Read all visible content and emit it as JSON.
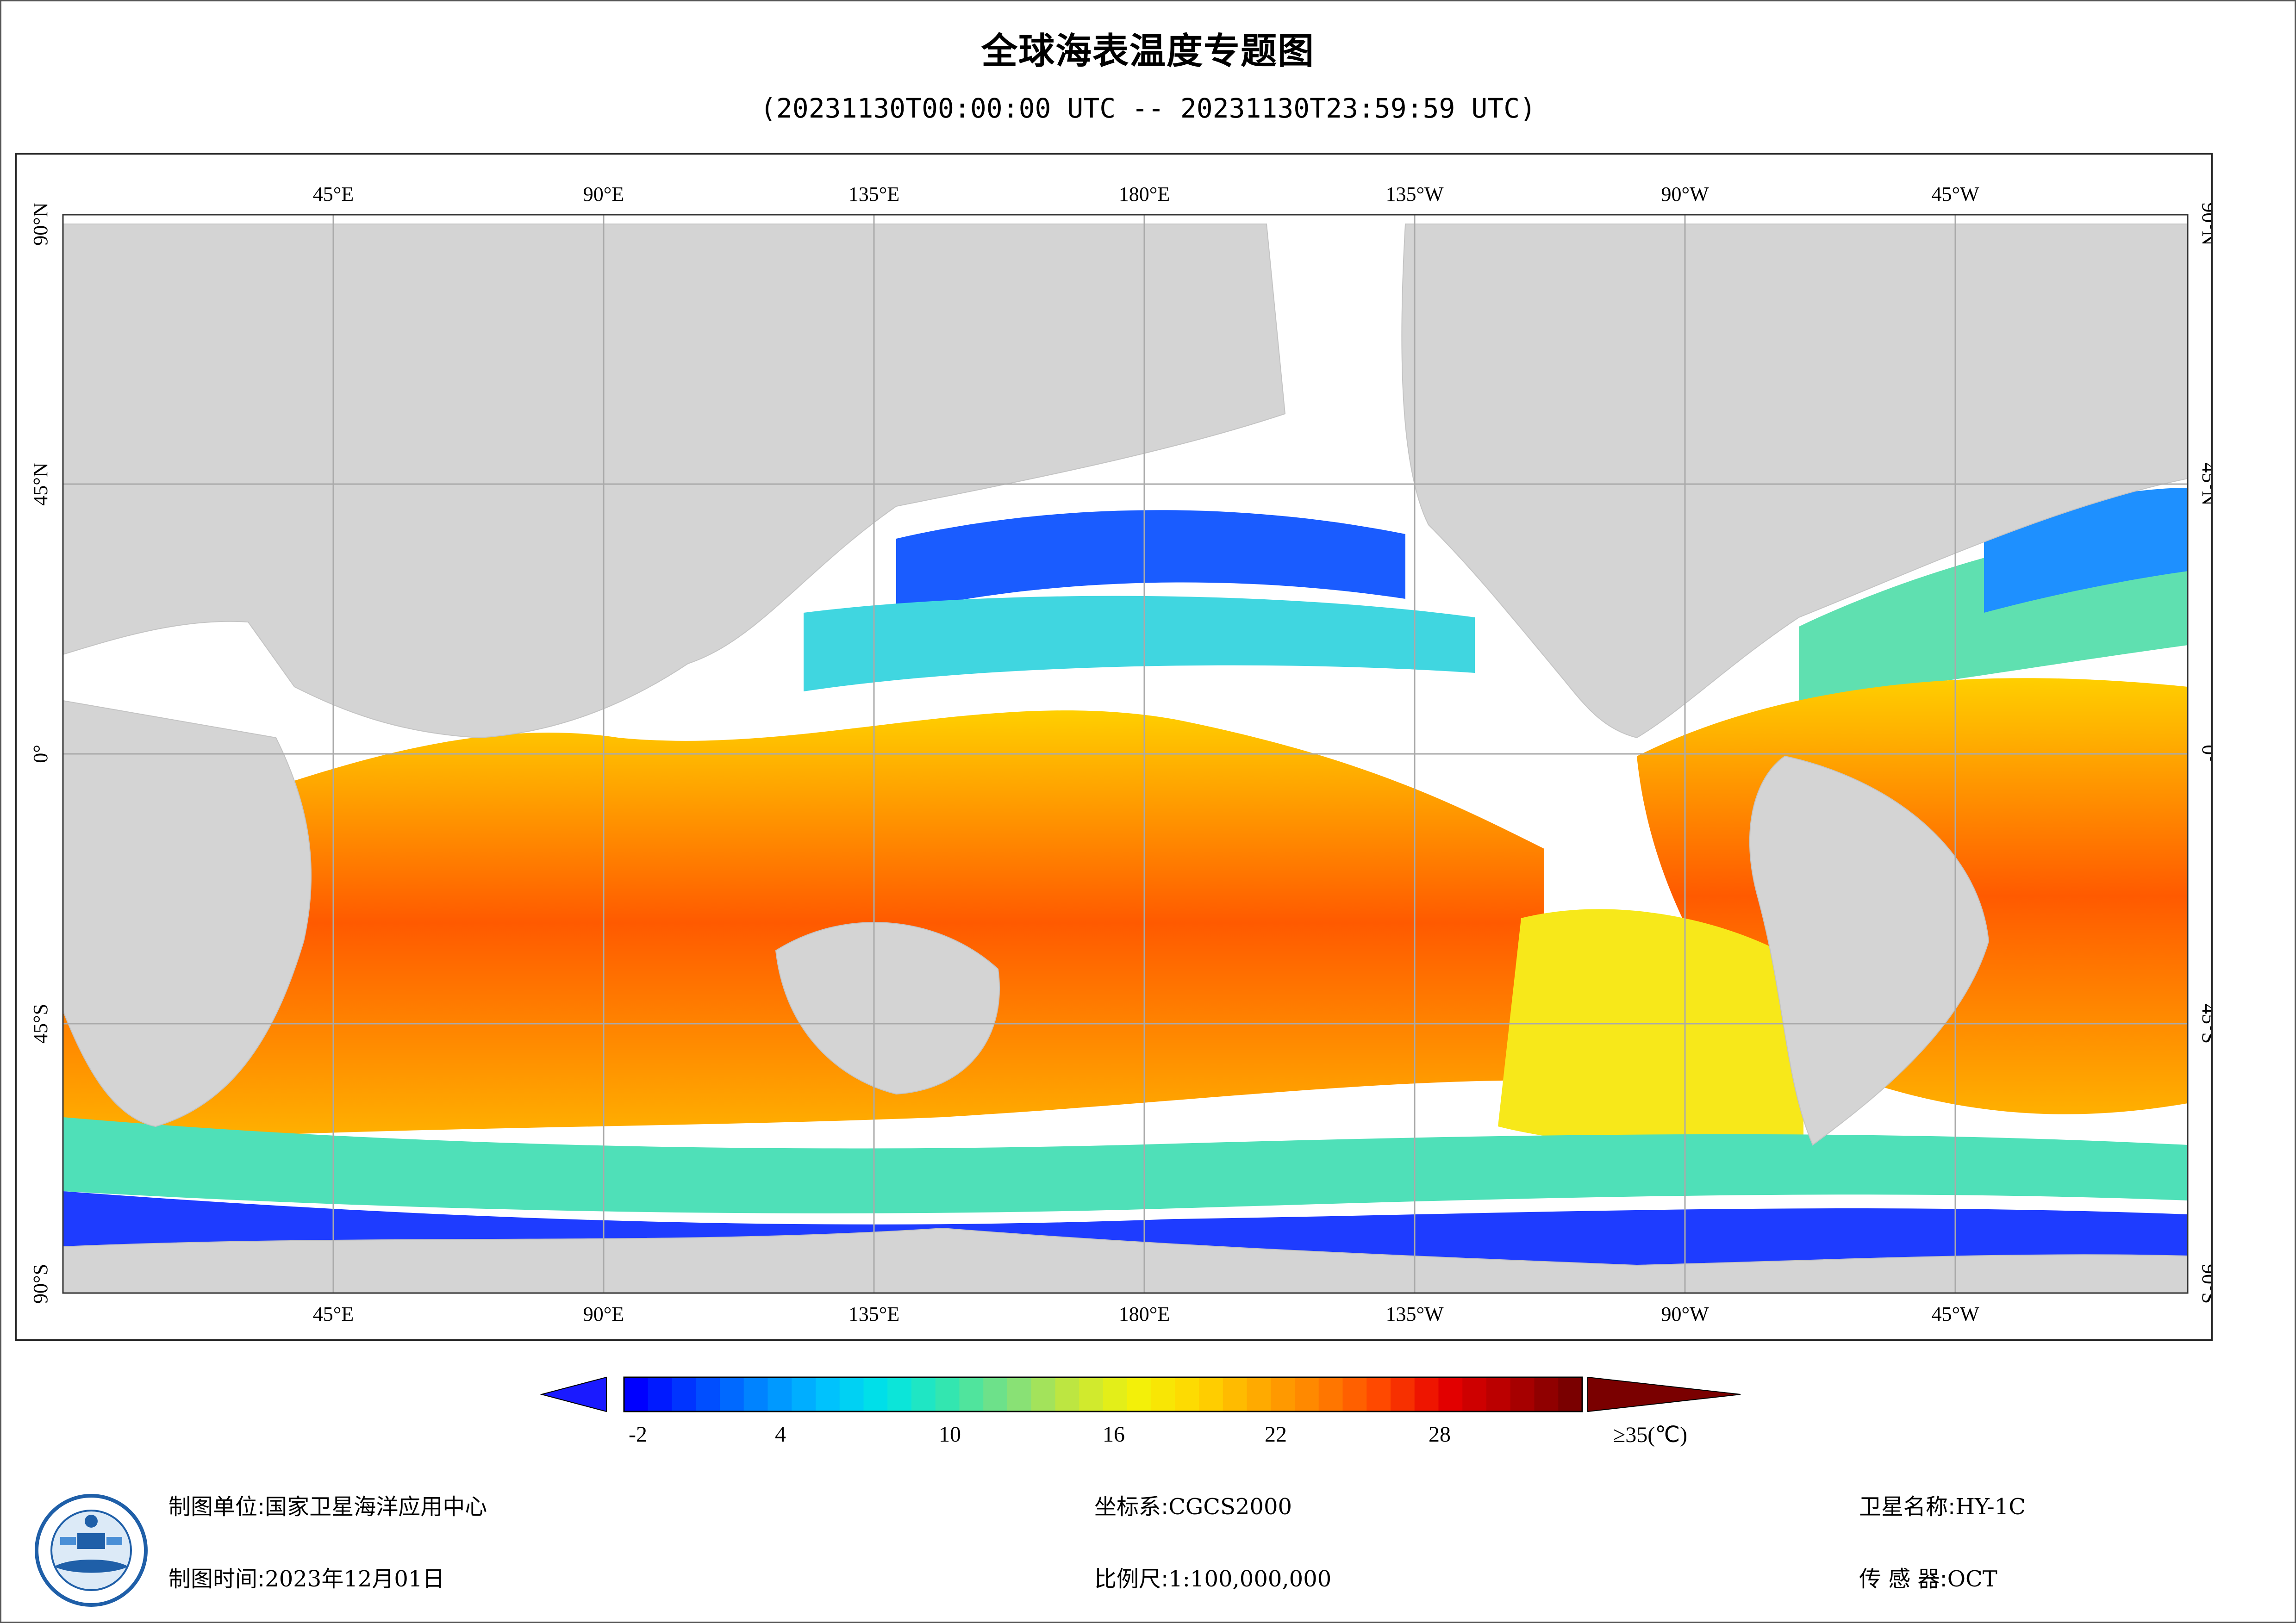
{
  "header": {
    "title": "全球海表温度专题图",
    "subtitle": "(20231130T00:00:00 UTC -- 20231130T23:59:59 UTC)"
  },
  "map": {
    "projection": "plate-carree, centered 180°",
    "lon_labels": [
      "45°E",
      "90°E",
      "135°E",
      "180°E",
      "135°W",
      "90°W",
      "45°W"
    ],
    "lat_labels": [
      "90°N",
      "45°N",
      "0°",
      "45°S",
      "90°S"
    ],
    "land_color": "#d4d4d4",
    "no_data_color": "#ffffff",
    "grid_color": "#aaaaaa",
    "ocean_layer": "sea surface temperature (°C)"
  },
  "legend": {
    "min": -2,
    "max": 35,
    "tick_labels": [
      "-2",
      "4",
      "10",
      "16",
      "22",
      "28",
      "≥35(℃)"
    ],
    "under_color": "#1a1aff",
    "over_color": "#7a0000",
    "colors": [
      "#0000ff",
      "#0044ff",
      "#0088ff",
      "#00bfff",
      "#00e5e5",
      "#33e6b0",
      "#7fe07f",
      "#c2e63c",
      "#f2f20a",
      "#ffd700",
      "#ffaa00",
      "#ff7f00",
      "#ff4500",
      "#e60000",
      "#b30000",
      "#7a0000"
    ]
  },
  "footer": {
    "org_label": "制图单位:",
    "org_value": "国家卫星海洋应用中心",
    "date_label": "制图时间:",
    "date_value": "2023年12月01日",
    "crs_label": "坐标系:",
    "crs_value": "CGCS2000",
    "scale_label": "比例尺:",
    "scale_value": "1:100,000,000",
    "satellite_label": "卫星名称:",
    "satellite_value": "HY-1C",
    "sensor_label": "传 感 器:",
    "sensor_value": "OCT"
  },
  "logo": {
    "name": "national-satellite-ocean-application-service-emblem"
  }
}
